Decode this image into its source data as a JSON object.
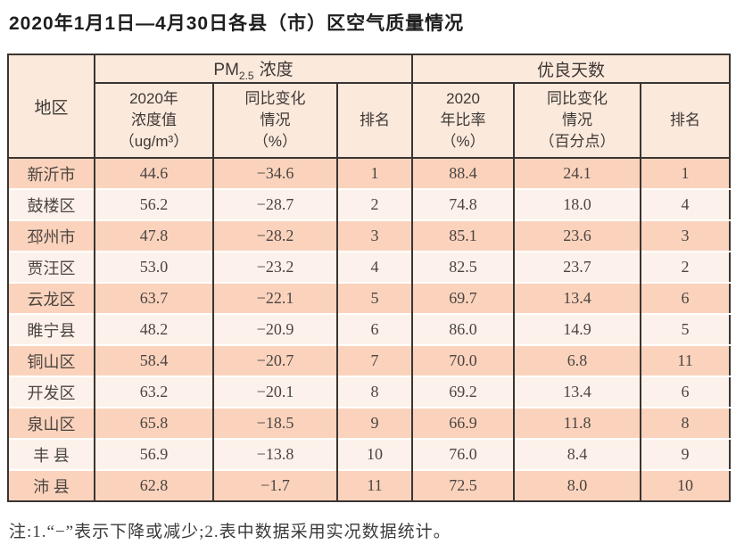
{
  "page": {
    "title": "2020年1月1日—4月30日各县（市）区空气质量情况",
    "footnote": "注:1.“−”表示下降或减少;2.表中数据采用实况数据统计。"
  },
  "colors": {
    "header_bg": "#fbe9dc",
    "row_odd_bg": "#fbd3bd",
    "row_even_bg": "#fdf2eb",
    "border": "#3a3532",
    "row_separator": "#ffffff",
    "text": "#4b4440"
  },
  "table": {
    "corner_header": "地区",
    "group1": {
      "prefix": "PM",
      "sub": "2.5",
      "suffix": "浓度"
    },
    "group2": "优良天数",
    "sub_headers": {
      "pm_value": "2020年\n浓度值\n（ug/m³）",
      "pm_change": "同比变化\n情况\n（%）",
      "pm_rank": "排名",
      "rate": "2020\n年比率\n（%）",
      "rate_change": "同比变化\n情况\n（百分点）",
      "rate_rank": "排名"
    },
    "rows": [
      {
        "region": "新沂市",
        "pm_value": "44.6",
        "pm_change": "−34.6",
        "pm_rank": "1",
        "rate": "88.4",
        "rate_change": "24.1",
        "rate_rank": "1"
      },
      {
        "region": "鼓楼区",
        "pm_value": "56.2",
        "pm_change": "−28.7",
        "pm_rank": "2",
        "rate": "74.8",
        "rate_change": "18.0",
        "rate_rank": "4"
      },
      {
        "region": "邳州市",
        "pm_value": "47.8",
        "pm_change": "−28.2",
        "pm_rank": "3",
        "rate": "85.1",
        "rate_change": "23.6",
        "rate_rank": "3"
      },
      {
        "region": "贾汪区",
        "pm_value": "53.0",
        "pm_change": "−23.2",
        "pm_rank": "4",
        "rate": "82.5",
        "rate_change": "23.7",
        "rate_rank": "2"
      },
      {
        "region": "云龙区",
        "pm_value": "63.7",
        "pm_change": "−22.1",
        "pm_rank": "5",
        "rate": "69.7",
        "rate_change": "13.4",
        "rate_rank": "6"
      },
      {
        "region": "睢宁县",
        "pm_value": "48.2",
        "pm_change": "−20.9",
        "pm_rank": "6",
        "rate": "86.0",
        "rate_change": "14.9",
        "rate_rank": "5"
      },
      {
        "region": "铜山区",
        "pm_value": "58.4",
        "pm_change": "−20.7",
        "pm_rank": "7",
        "rate": "70.0",
        "rate_change": "6.8",
        "rate_rank": "11"
      },
      {
        "region": "开发区",
        "pm_value": "63.2",
        "pm_change": "−20.1",
        "pm_rank": "8",
        "rate": "69.2",
        "rate_change": "13.4",
        "rate_rank": "6"
      },
      {
        "region": "泉山区",
        "pm_value": "65.8",
        "pm_change": "−18.5",
        "pm_rank": "9",
        "rate": "66.9",
        "rate_change": "11.8",
        "rate_rank": "8"
      },
      {
        "region": "丰 县",
        "pm_value": "56.9",
        "pm_change": "−13.8",
        "pm_rank": "10",
        "rate": "76.0",
        "rate_change": "8.4",
        "rate_rank": "9"
      },
      {
        "region": "沛 县",
        "pm_value": "62.8",
        "pm_change": "−1.7",
        "pm_rank": "11",
        "rate": "72.5",
        "rate_change": "8.0",
        "rate_rank": "10"
      }
    ]
  }
}
